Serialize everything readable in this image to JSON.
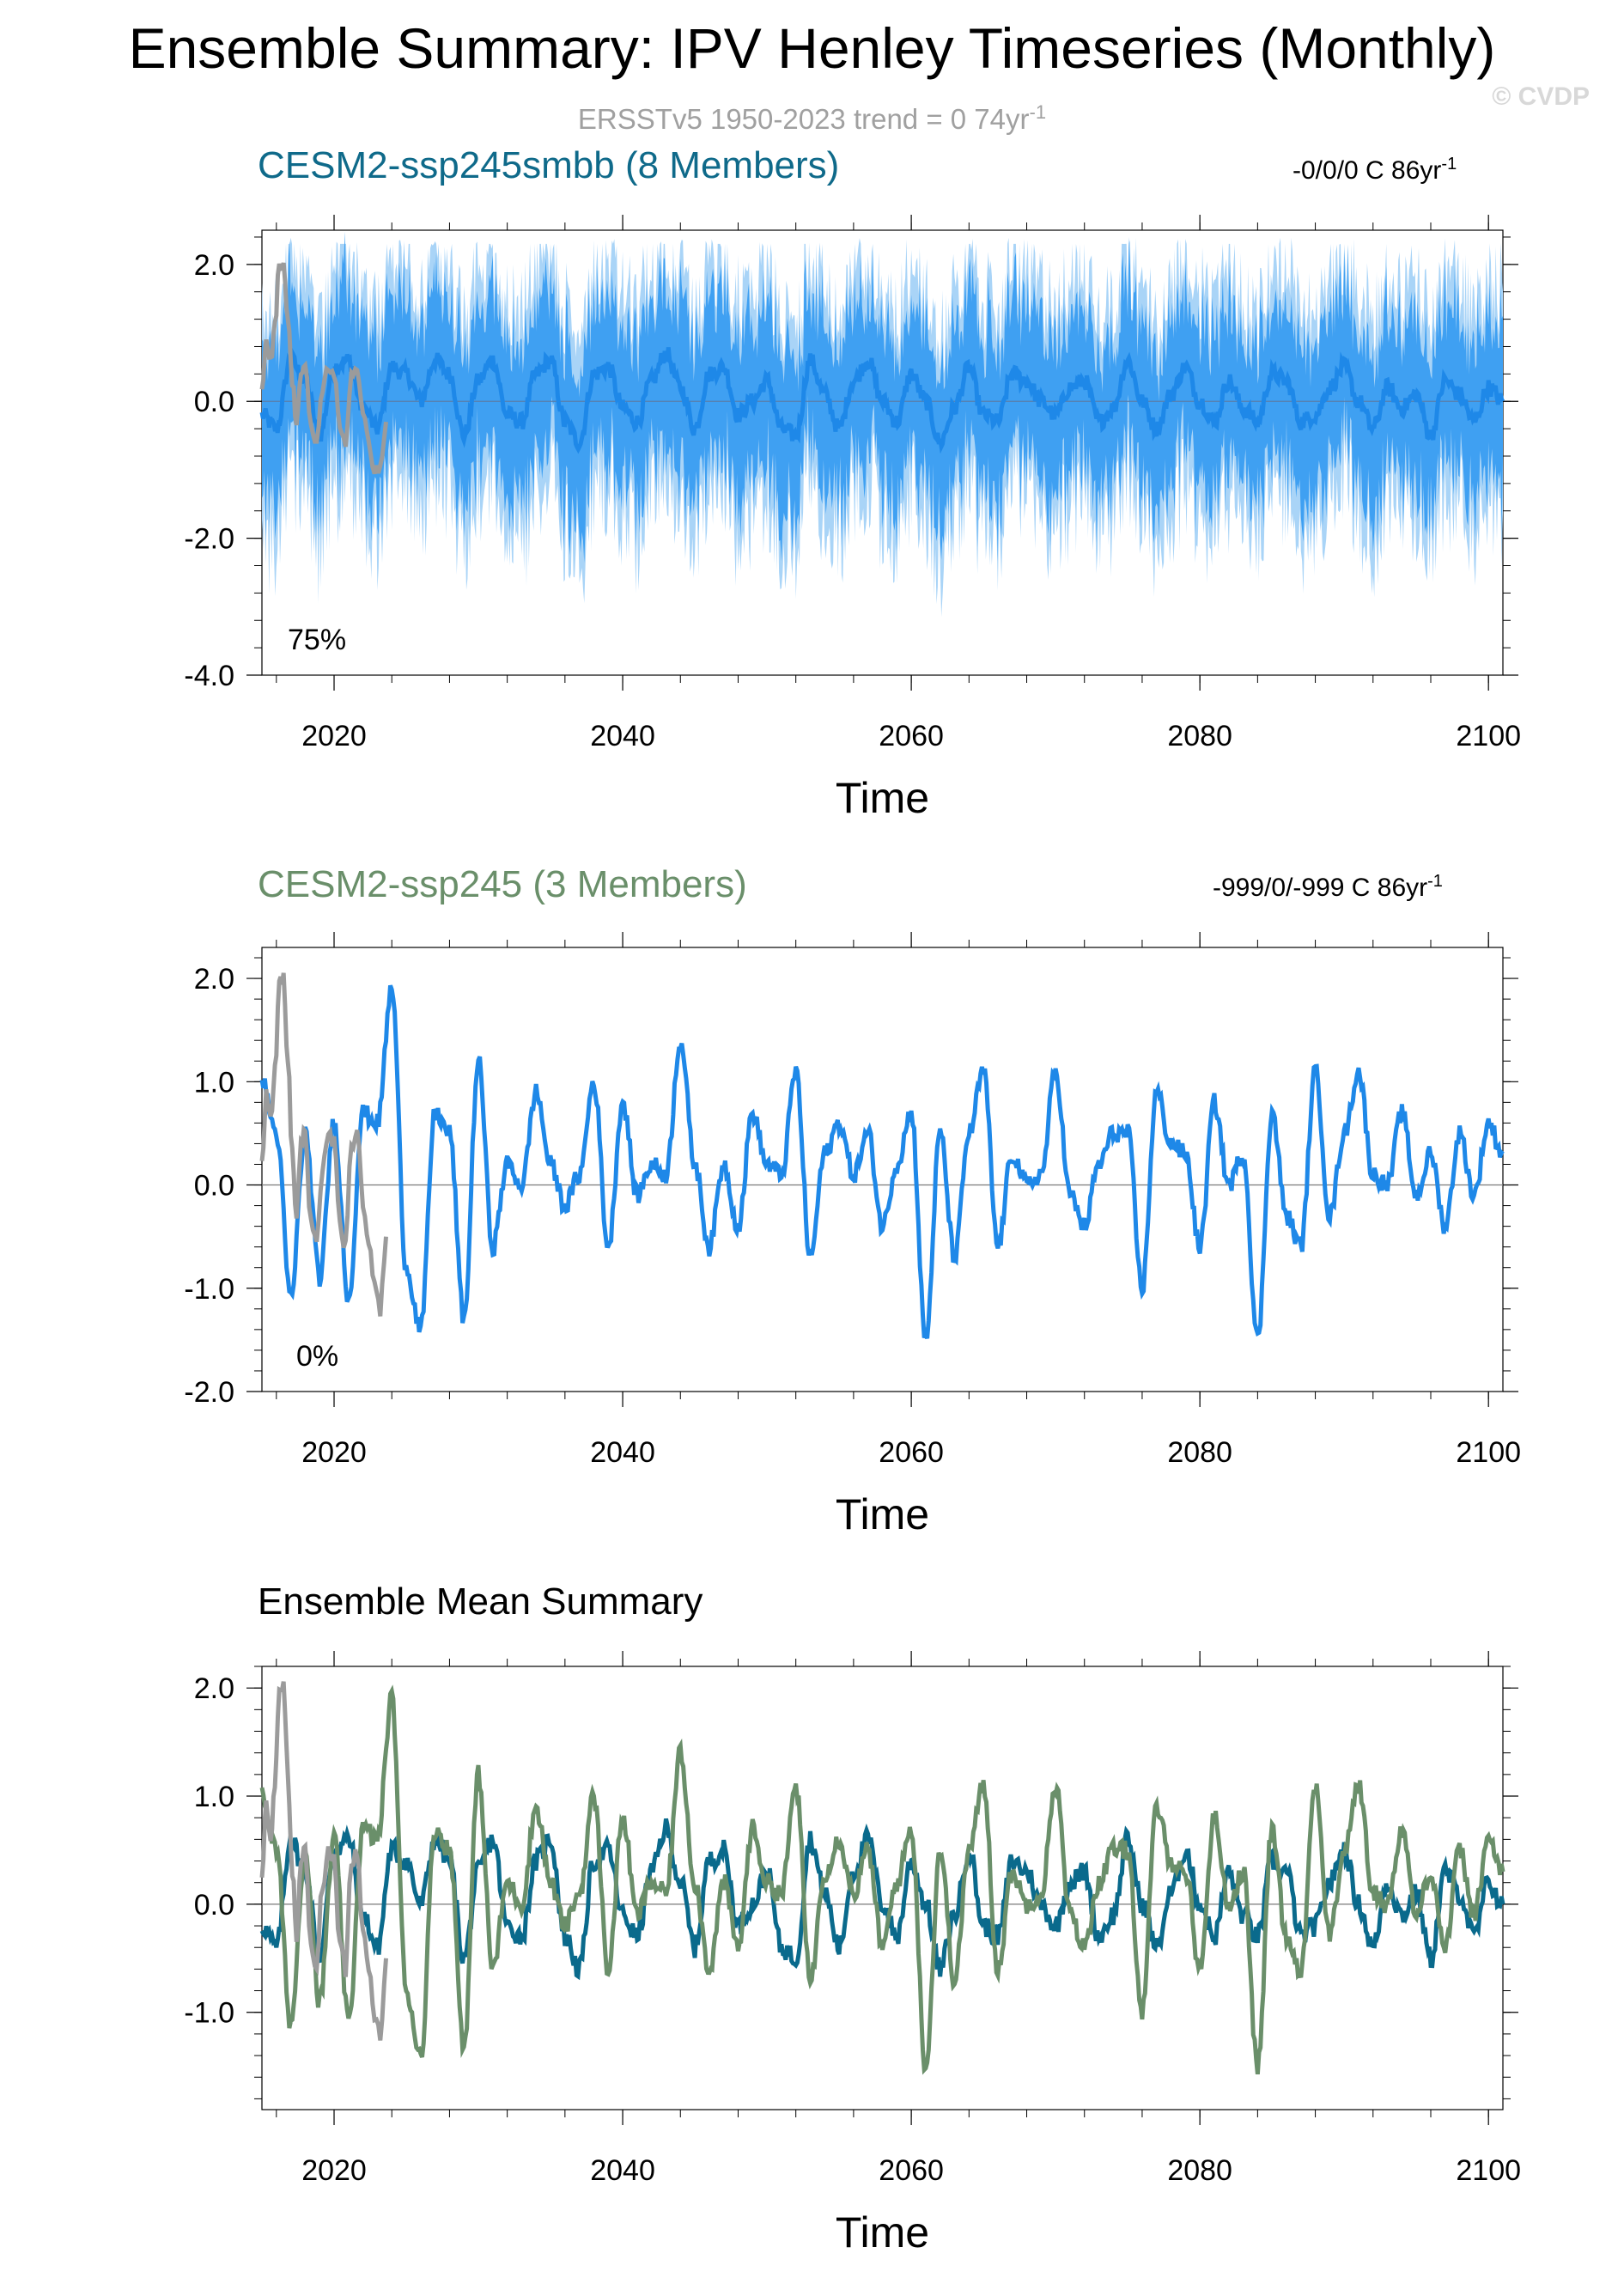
{
  "header": {
    "title": "Ensemble Summary: IPV Henley Timeseries (Monthly)",
    "subtitle_main": "ERSSTv5 1950-2023 trend = 0 74yr",
    "subtitle_sup": "-1",
    "credit": "© CVDP"
  },
  "colors": {
    "obs": "#9b9b9b",
    "smbb_light": "#a9d4f7",
    "smbb_mid": "#3fa0f2",
    "smbb_line": "#1e88e8",
    "ssp245_line": "#1e88e8",
    "mean_smbb": "#0a6a8c",
    "mean_ssp245": "#6a8f6a",
    "title_smbb": "#0f6a8a",
    "title_ssp245": "#6a8f6a"
  },
  "panels": [
    {
      "title": "CESM2-ssp245smbb (8 Members)",
      "right_main": "-0/0/0 C 86yr",
      "right_sup": "-1",
      "pct_label": "75%",
      "xlabel": "Time"
    },
    {
      "title": "CESM2-ssp245 (3 Members)",
      "right_main": "-999/0/-999 C 86yr",
      "right_sup": "-1",
      "pct_label": "0%",
      "xlabel": "Time"
    },
    {
      "title": "Ensemble Mean Summary",
      "xlabel": "Time"
    }
  ],
  "chart_data": [
    {
      "type": "line",
      "title": "CESM2-ssp245smbb (8 Members)",
      "xlabel": "Time",
      "ylabel": "",
      "xlim": [
        2015,
        2101
      ],
      "ylim": [
        -4.0,
        2.5
      ],
      "xticks": [
        "2020",
        "2040",
        "2060",
        "2080",
        "2100"
      ],
      "yticks": [
        "2.0",
        "0.0",
        "-2.0",
        "-4.0"
      ],
      "series": [
        {
          "role": "observations",
          "x": [
            2015.0,
            2015.3,
            2015.6,
            2015.9,
            2016.2,
            2016.5,
            2016.8,
            2017.1,
            2017.4,
            2017.7,
            2018.0,
            2018.4,
            2018.8,
            2019.2,
            2019.6,
            2020.0,
            2020.4,
            2020.8,
            2021.2,
            2021.6,
            2022.0,
            2022.4,
            2022.8,
            2023.2,
            2023.6
          ],
          "y": [
            0.2,
            0.9,
            0.6,
            1.1,
            2.0,
            2.0,
            1.2,
            0.3,
            -0.3,
            0.4,
            0.5,
            -0.4,
            -0.6,
            0.2,
            0.5,
            0.4,
            -0.4,
            -0.6,
            0.4,
            0.5,
            -0.2,
            -0.6,
            -1.0,
            -1.0,
            -0.3
          ]
        },
        {
          "role": "ensemble-mean",
          "x": [
            2015,
            2016,
            2017,
            2018,
            2019,
            2020,
            2021,
            2022,
            2023,
            2024,
            2025,
            2026,
            2027,
            2028,
            2029,
            2030,
            2031,
            2032,
            2033,
            2034,
            2035,
            2036,
            2037,
            2038,
            2039,
            2040,
            2041,
            2042,
            2043,
            2044,
            2045,
            2046,
            2047,
            2048,
            2049,
            2050,
            2051,
            2052,
            2053,
            2054,
            2055,
            2056,
            2057,
            2058,
            2059,
            2060,
            2061,
            2062,
            2063,
            2064,
            2065,
            2066,
            2067,
            2068,
            2069,
            2070,
            2071,
            2072,
            2073,
            2074,
            2075,
            2076,
            2077,
            2078,
            2079,
            2080,
            2081,
            2082,
            2083,
            2084,
            2085,
            2086,
            2087,
            2088,
            2089,
            2090,
            2091,
            2092,
            2093,
            2094,
            2095,
            2096,
            2097,
            2098,
            2099,
            2100,
            2101
          ],
          "y": [
            -0.2,
            -0.4,
            0.6,
            0.3,
            -0.5,
            0.5,
            0.6,
            -0.1,
            -0.4,
            0.5,
            0.4,
            0.0,
            0.6,
            0.4,
            -0.5,
            0.3,
            0.6,
            -0.2,
            -0.3,
            0.4,
            0.6,
            -0.3,
            -0.6,
            0.4,
            0.5,
            -0.1,
            -0.3,
            0.3,
            0.7,
            0.2,
            -0.4,
            0.4,
            0.5,
            -0.2,
            0.0,
            0.3,
            -0.4,
            -0.5,
            0.6,
            0.1,
            -0.4,
            0.3,
            0.6,
            0.0,
            -0.3,
            0.4,
            0.0,
            -0.6,
            -0.1,
            0.5,
            -0.2,
            -0.3,
            0.4,
            0.3,
            0.0,
            -0.2,
            0.2,
            0.3,
            -0.3,
            -0.1,
            0.6,
            0.0,
            -0.4,
            0.1,
            0.5,
            0.0,
            -0.3,
            0.3,
            -0.1,
            -0.3,
            0.4,
            0.3,
            -0.3,
            -0.2,
            0.2,
            0.5,
            0.0,
            -0.4,
            0.2,
            -0.1,
            0.1,
            -0.5,
            0.3,
            0.1,
            -0.3,
            0.2,
            0.0
          ]
        }
      ],
      "annotations": [
        "75%"
      ]
    },
    {
      "type": "line",
      "title": "CESM2-ssp245 (3 Members)",
      "xlabel": "Time",
      "ylabel": "",
      "xlim": [
        2015,
        2101
      ],
      "ylim": [
        -2.0,
        2.3
      ],
      "xticks": [
        "2020",
        "2040",
        "2060",
        "2080",
        "2100"
      ],
      "yticks": [
        "2.0",
        "1.0",
        "0.0",
        "-1.0",
        "-2.0"
      ],
      "series": [
        {
          "role": "observations",
          "x": [
            2015.0,
            2015.3,
            2015.6,
            2015.9,
            2016.2,
            2016.5,
            2016.8,
            2017.1,
            2017.4,
            2017.7,
            2018.0,
            2018.4,
            2018.8,
            2019.2,
            2019.6,
            2020.0,
            2020.4,
            2020.8,
            2021.2,
            2021.6,
            2022.0,
            2022.4,
            2022.8,
            2023.2,
            2023.6
          ],
          "y": [
            0.2,
            0.9,
            0.6,
            1.1,
            2.0,
            2.0,
            1.2,
            0.3,
            -0.3,
            0.4,
            0.5,
            -0.4,
            -0.6,
            0.2,
            0.5,
            0.4,
            -0.4,
            -0.6,
            0.4,
            0.5,
            -0.2,
            -0.6,
            -1.0,
            -1.2,
            -0.5
          ]
        },
        {
          "role": "ensemble-mean",
          "x": [
            2015,
            2016,
            2017,
            2018,
            2019,
            2020,
            2021,
            2022,
            2023,
            2024,
            2025,
            2026,
            2027,
            2028,
            2029,
            2030,
            2031,
            2032,
            2033,
            2034,
            2035,
            2036,
            2037,
            2038,
            2039,
            2040,
            2041,
            2042,
            2043,
            2044,
            2045,
            2046,
            2047,
            2048,
            2049,
            2050,
            2051,
            2052,
            2053,
            2054,
            2055,
            2056,
            2057,
            2058,
            2059,
            2060,
            2061,
            2062,
            2063,
            2064,
            2065,
            2066,
            2067,
            2068,
            2069,
            2070,
            2071,
            2072,
            2073,
            2074,
            2075,
            2076,
            2077,
            2078,
            2079,
            2080,
            2081,
            2082,
            2083,
            2084,
            2085,
            2086,
            2087,
            2088,
            2089,
            2090,
            2091,
            2092,
            2093,
            2094,
            2095,
            2096,
            2097,
            2098,
            2099,
            2100,
            2101
          ],
          "y": [
            1.0,
            0.5,
            -1.1,
            0.5,
            -0.9,
            0.6,
            -1.1,
            0.7,
            0.6,
            1.9,
            -0.8,
            -1.4,
            0.7,
            0.5,
            -1.3,
            1.2,
            -0.6,
            0.2,
            0.0,
            0.9,
            0.2,
            -0.2,
            0.1,
            1.0,
            -0.6,
            0.8,
            -0.1,
            0.2,
            0.1,
            1.4,
            0.2,
            -0.6,
            0.2,
            -0.4,
            0.7,
            0.2,
            0.1,
            1.1,
            -0.7,
            0.3,
            0.6,
            0.1,
            0.5,
            -0.4,
            0.2,
            0.7,
            -1.5,
            0.5,
            -0.7,
            0.5,
            1.1,
            -0.6,
            0.3,
            0.0,
            0.1,
            1.1,
            -0.1,
            -0.4,
            0.2,
            0.5,
            0.5,
            -1.0,
            0.9,
            0.4,
            0.3,
            -0.6,
            0.8,
            0.0,
            0.3,
            -1.5,
            0.7,
            -0.3,
            -0.6,
            1.1,
            -0.3,
            0.5,
            1.1,
            0.1,
            0.0,
            0.7,
            -0.1,
            0.3,
            -0.4,
            0.5,
            -0.1,
            0.6,
            0.3
          ]
        }
      ],
      "annotations": [
        "0%"
      ]
    },
    {
      "type": "line",
      "title": "Ensemble Mean Summary",
      "xlabel": "Time",
      "ylabel": "",
      "xlim": [
        2015,
        2101
      ],
      "ylim": [
        -1.9,
        2.2
      ],
      "xticks": [
        "2020",
        "2040",
        "2060",
        "2080",
        "2100"
      ],
      "yticks": [
        "2.0",
        "1.0",
        "0.0",
        "-1.0"
      ],
      "series": [
        {
          "role": "observations"
        },
        {
          "role": "ensemble-mean CESM2-ssp245smbb"
        },
        {
          "role": "ensemble-mean CESM2-ssp245"
        }
      ]
    }
  ]
}
